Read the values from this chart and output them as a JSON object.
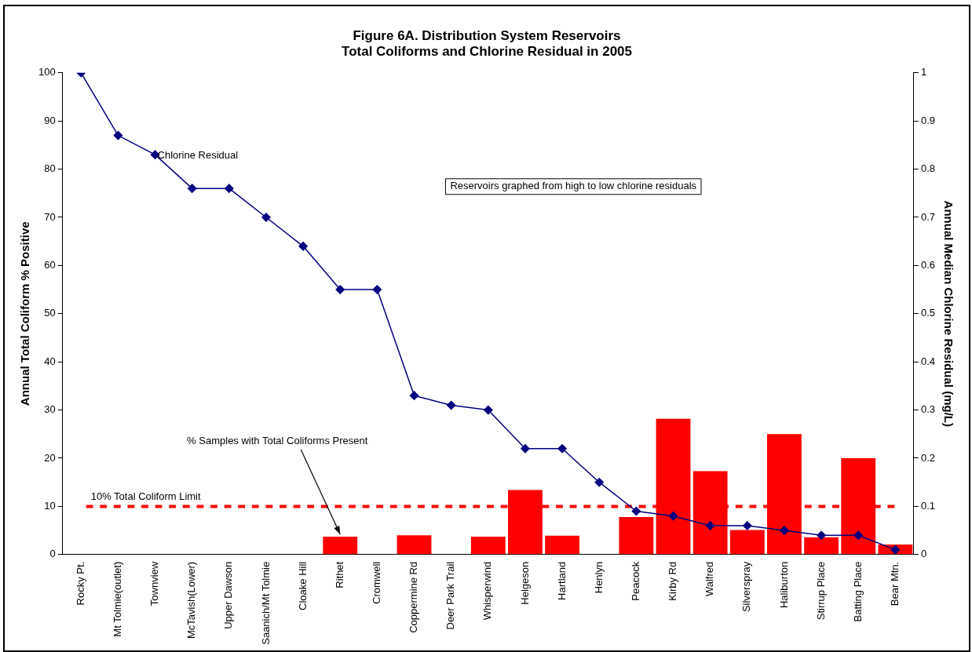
{
  "chart_data": {
    "type": "bar",
    "title": "Figure 6A. Distribution System Reservoirs\nTotal Coliforms and Chlorine Residual in 2005",
    "categories": [
      "Rocky Pt.",
      "Mt Tolmie(outlet)",
      "Townview",
      "McTavish(Lower)",
      "Upper Dawson",
      "Saanich/Mt Tolmie",
      "Cloake Hill",
      "Rithet",
      "Cromwell",
      "Coppermine Rd",
      "Deer Park Trail",
      "Whisperwind",
      "Helgeson",
      "Hartland",
      "Henlyn",
      "Peacock",
      "Kirby Rd",
      "Walfred",
      "Silverspray",
      "Haliburton",
      "Stirrup Place",
      "Batting Place",
      "Bear Mtn."
    ],
    "series": [
      {
        "name": "% Samples with Total Coliforms Present",
        "color": "#ff0000",
        "values": [
          null,
          null,
          null,
          null,
          null,
          null,
          null,
          3.7,
          null,
          4,
          null,
          3.7,
          13.4,
          3.9,
          null,
          7.8,
          28.2,
          17.3,
          5.1,
          25,
          3.6,
          20,
          2.1
        ]
      },
      {
        "name": "Chlorine Residual",
        "type": "line",
        "axis": "y2",
        "color": "#000080",
        "values": [
          1,
          0.87,
          0.83,
          0.76,
          0.76,
          0.7,
          0.64,
          0.55,
          0.55,
          0.33,
          0.31,
          0.3,
          0.22,
          0.22,
          0.15,
          0.09,
          0.08,
          0.06,
          0.06,
          0.05,
          0.04,
          0.04,
          0.01
        ]
      }
    ],
    "ylabel": "Annual Total Coliform % Positive",
    "y2label": "Annual Median Chlorine Residual (mg/L)",
    "ylim": [
      0,
      100
    ],
    "yticks": [
      0,
      10,
      20,
      30,
      40,
      50,
      60,
      70,
      80,
      90,
      100
    ],
    "y2lim": [
      0,
      1
    ],
    "y2ticks": [
      0,
      0.1,
      0.2,
      0.3,
      0.4,
      0.5,
      0.6,
      0.7,
      0.8,
      0.9,
      1
    ],
    "ref_lines": [
      {
        "axis": "y",
        "value": 10,
        "label": "10% Total Coliform Limit",
        "color": "#ff0000",
        "line_style": "dashed"
      }
    ],
    "annotations": [
      "Reservoirs graphed from high to low chlorine residuals"
    ],
    "marker": "diamond",
    "legend": false,
    "grid": false
  }
}
